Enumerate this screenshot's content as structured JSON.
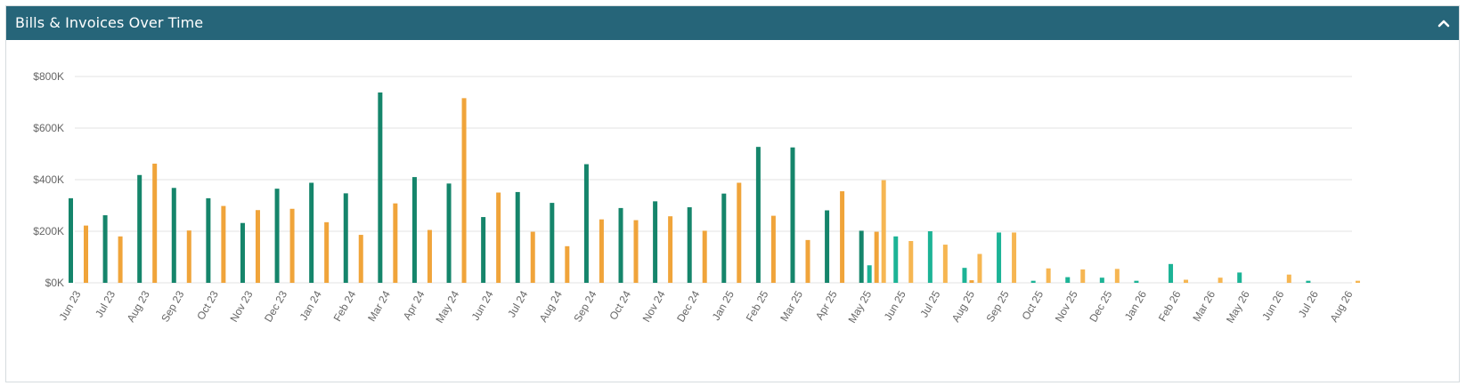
{
  "panel": {
    "title": "Bills & Invoices Over Time",
    "collapse_icon": "chevron-up-icon"
  },
  "colors": {
    "header_bg": "#266579",
    "bills": "#15856b",
    "invoices": "#f0a43a",
    "bills_future": "#1cb396",
    "invoices_future": "#f6b652",
    "grid": "#e3e3e3"
  },
  "chart_data": {
    "type": "bar",
    "title": "",
    "xlabel": "",
    "ylabel": "",
    "ylim": [
      0,
      800000
    ],
    "yticks": [
      {
        "value": 0,
        "label": "$0K"
      },
      {
        "value": 200000,
        "label": "$200K"
      },
      {
        "value": 400000,
        "label": "$400K"
      },
      {
        "value": 600000,
        "label": "$600K"
      },
      {
        "value": 800000,
        "label": "$800K"
      }
    ],
    "grid": true,
    "legend": "none",
    "categories": [
      "Jun 23",
      "Jul 23",
      "Aug 23",
      "Sep 23",
      "Oct 23",
      "Nov 23",
      "Dec 23",
      "Jan 24",
      "Feb 24",
      "Mar 24",
      "Apr 24",
      "May 24",
      "Jun 24",
      "Jul 24",
      "Aug 24",
      "Sep 24",
      "Oct 24",
      "Nov 24",
      "Dec 24",
      "Jan 25",
      "Feb 25",
      "Mar 25",
      "Apr 25",
      "May 25",
      "Jun 25",
      "Jul 25",
      "Aug 25",
      "Sep 25",
      "Oct 25",
      "Nov 25",
      "Dec 25",
      "Jan 26",
      "Feb 26",
      "Mar 26",
      "May 26",
      "Jun 26",
      "Jul 26",
      "Aug 26"
    ],
    "series": [
      {
        "values": [
          328000,
          262000,
          418000,
          368000,
          328000,
          232000,
          365000,
          388000,
          347000,
          738000,
          410000,
          385000,
          255000,
          352000,
          310000,
          460000,
          290000,
          316000,
          293000,
          346000,
          527000,
          525000,
          281000,
          202000,
          180000,
          200000,
          58000,
          195000,
          8000,
          22000,
          20000,
          8000,
          73000,
          0,
          40000,
          0,
          8000,
          0
        ],
        "future_from": "Jun 25",
        "extra_current": {
          "category": "May 25",
          "value": 68000
        }
      },
      {
        "values": [
          222000,
          180000,
          462000,
          203000,
          298000,
          282000,
          287000,
          235000,
          186000,
          308000,
          205000,
          716000,
          350000,
          198000,
          142000,
          246000,
          243000,
          258000,
          202000,
          388000,
          260000,
          166000,
          355000,
          198000,
          162000,
          148000,
          112000,
          195000,
          56000,
          52000,
          54000,
          0,
          12000,
          20000,
          0,
          32000,
          0,
          8000
        ],
        "future_from": "Jun 25",
        "extra_future": {
          "category": "May 25",
          "value": 398000
        },
        "extra_current": {
          "category": "Aug 25",
          "value": 10000
        }
      }
    ]
  }
}
